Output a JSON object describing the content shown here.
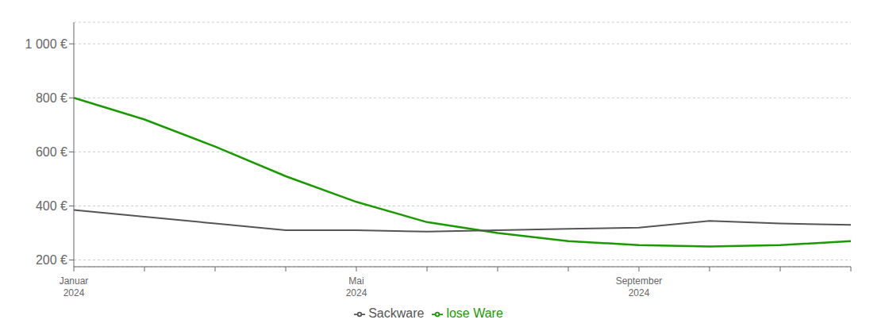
{
  "chart_data": {
    "type": "line",
    "categories": [
      "Januar 2024",
      null,
      null,
      null,
      "Mai 2024",
      null,
      null,
      null,
      "September 2024",
      null,
      null,
      null
    ],
    "series": [
      {
        "name": "lose Ware",
        "color": "#1a9900",
        "values": [
          800,
          720,
          620,
          510,
          415,
          340,
          300,
          270,
          255,
          250,
          255,
          270
        ]
      },
      {
        "name": "Sackware",
        "color": "#555555",
        "values": [
          385,
          360,
          335,
          310,
          310,
          305,
          310,
          315,
          320,
          345,
          335,
          330
        ]
      }
    ],
    "ylim": [
      175,
      1080
    ],
    "yticks": [
      {
        "value": 200,
        "label": "200 €"
      },
      {
        "value": 400,
        "label": "400 €"
      },
      {
        "value": 600,
        "label": "600 €"
      },
      {
        "value": 800,
        "label": "800 €"
      },
      {
        "value": 1000,
        "label": "1 000 €"
      }
    ],
    "grid": true,
    "legend": "bottom"
  }
}
